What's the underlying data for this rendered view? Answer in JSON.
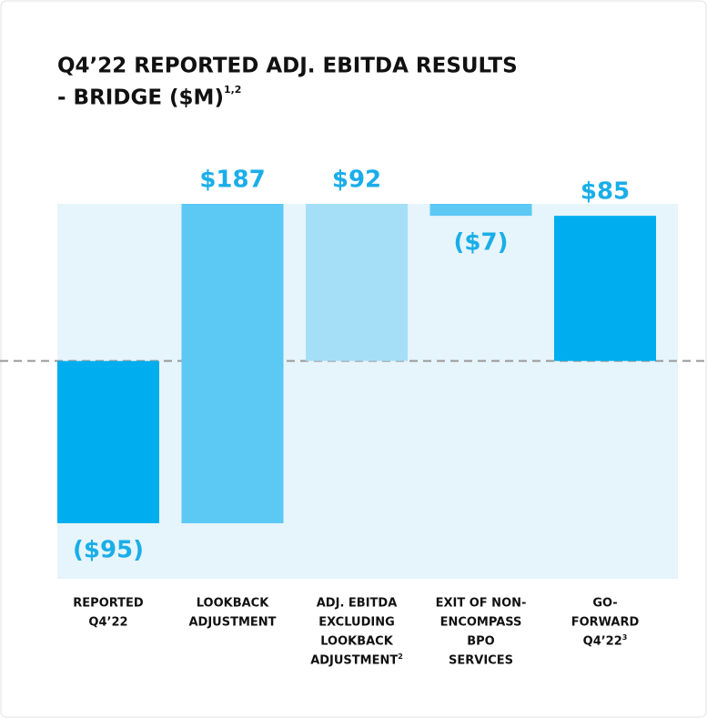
{
  "chart_data": {
    "type": "waterfall",
    "title": [
      "Q4’22 REPORTED ADJ. EBITDA RESULTS",
      "- BRIDGE ($M)"
    ],
    "title_note": "1,2",
    "categories": [
      [
        "REPORTED",
        "Q4’22"
      ],
      [
        "LOOKBACK",
        "ADJUSTMENT"
      ],
      [
        "ADJ. EBITDA",
        "EXCLUDING",
        "LOOKBACK",
        "ADJUSTMENT"
      ],
      [
        "EXIT OF NON-",
        "ENCOMPASS",
        "BPO",
        "SERVICES"
      ],
      [
        "GO-",
        "FORWARD",
        "Q4’22"
      ]
    ],
    "category_notes": [
      null,
      null,
      "2",
      null,
      "3"
    ],
    "values": [
      -95,
      187,
      92,
      -7,
      85
    ],
    "value_labels": [
      "($95)",
      "$187",
      "$92",
      "($7)",
      "$85"
    ],
    "totals": [
      false,
      false,
      true,
      false,
      true
    ],
    "colors": [
      "#00aeef",
      "#5cc8f4",
      "#a5dff7",
      "#5cc8f4",
      "#00aeef"
    ]
  }
}
